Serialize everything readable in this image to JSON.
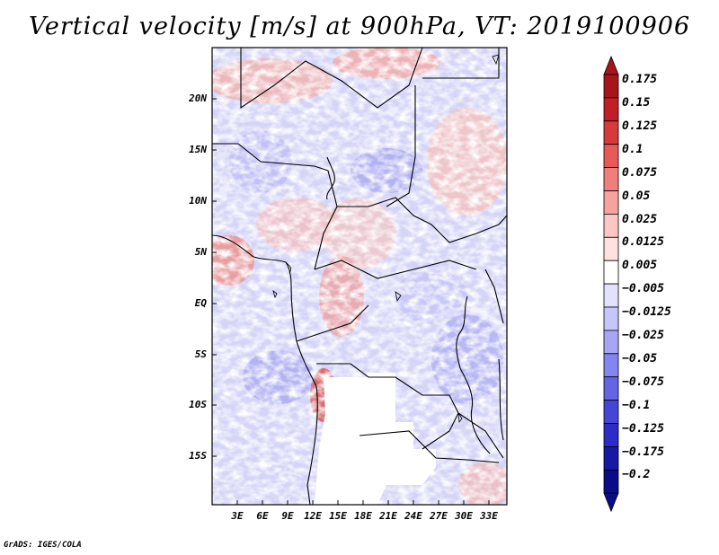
{
  "title": "Vertical velocity [m/s] at 900hPa, VT: 2019100906",
  "credit": "GrADS: IGES/COLA",
  "map": {
    "lat_labels": [
      "20N",
      "15N",
      "10N",
      "5N",
      "EQ",
      "5S",
      "10S",
      "15S"
    ],
    "lon_labels": [
      "3E",
      "6E",
      "9E",
      "12E",
      "15E",
      "18E",
      "21E",
      "24E",
      "27E",
      "30E",
      "33E"
    ],
    "lat_range": [
      -19.5,
      24.5
    ],
    "lon_range": [
      0,
      35
    ]
  },
  "colorbar": {
    "labels": [
      "0.175",
      "0.15",
      "0.125",
      "0.1",
      "0.075",
      "0.05",
      "0.025",
      "0.0125",
      "0.005",
      "−0.005",
      "−0.0125",
      "−0.025",
      "−0.05",
      "−0.075",
      "−0.1",
      "−0.125",
      "−0.175",
      "−0.2"
    ],
    "colors": [
      "#a8141c",
      "#c11f27",
      "#d73a3b",
      "#e65a57",
      "#ef7f7b",
      "#f6a3a0",
      "#fbc6c3",
      "#fde2e0",
      "#ffffff",
      "#e2e2fd",
      "#c6c6fa",
      "#a6a6f5",
      "#8585ef",
      "#6464e4",
      "#4646d6",
      "#2d2dc6",
      "#1818a6",
      "#0b0b88"
    ]
  }
}
